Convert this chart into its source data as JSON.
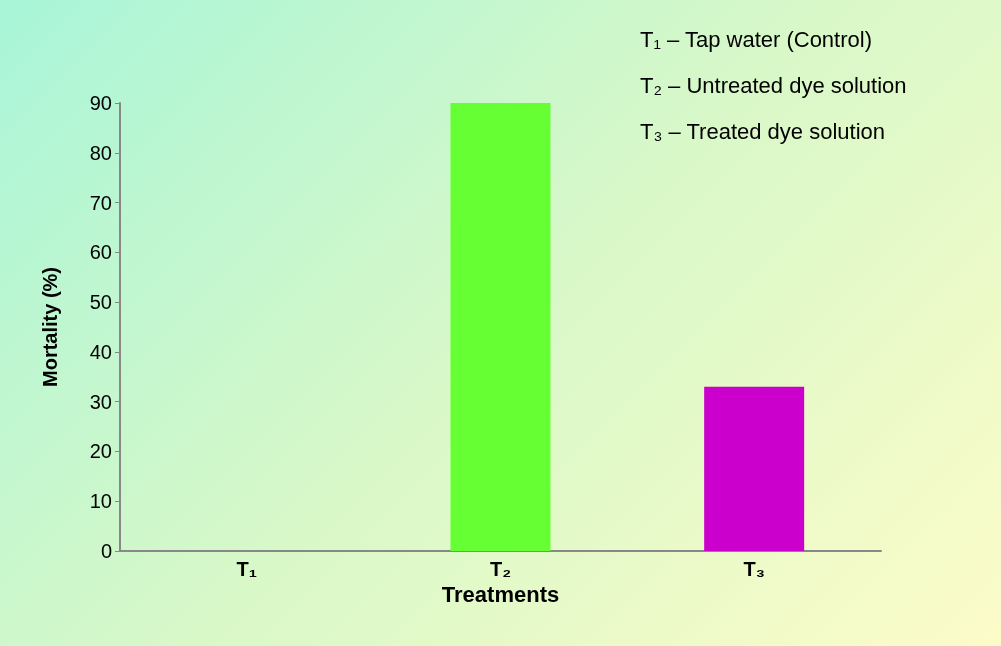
{
  "chart_data": {
    "type": "bar",
    "xlabel": "Treatments",
    "ylabel": "Mortality (%)",
    "categories": [
      "T₁",
      "T₂",
      "T₃"
    ],
    "values": [
      0,
      90,
      33
    ],
    "colors": [
      "#990000",
      "#66ff33",
      "#cc00cc"
    ],
    "ylim": [
      0,
      90
    ],
    "yticks": [
      0,
      10,
      20,
      30,
      40,
      50,
      60,
      70,
      80,
      90
    ],
    "grid": false,
    "annotations": [
      "T₁ – Tap water (Control)",
      "T₂ – Untreated dye solution",
      "T₃ – Treated dye solution"
    ]
  }
}
